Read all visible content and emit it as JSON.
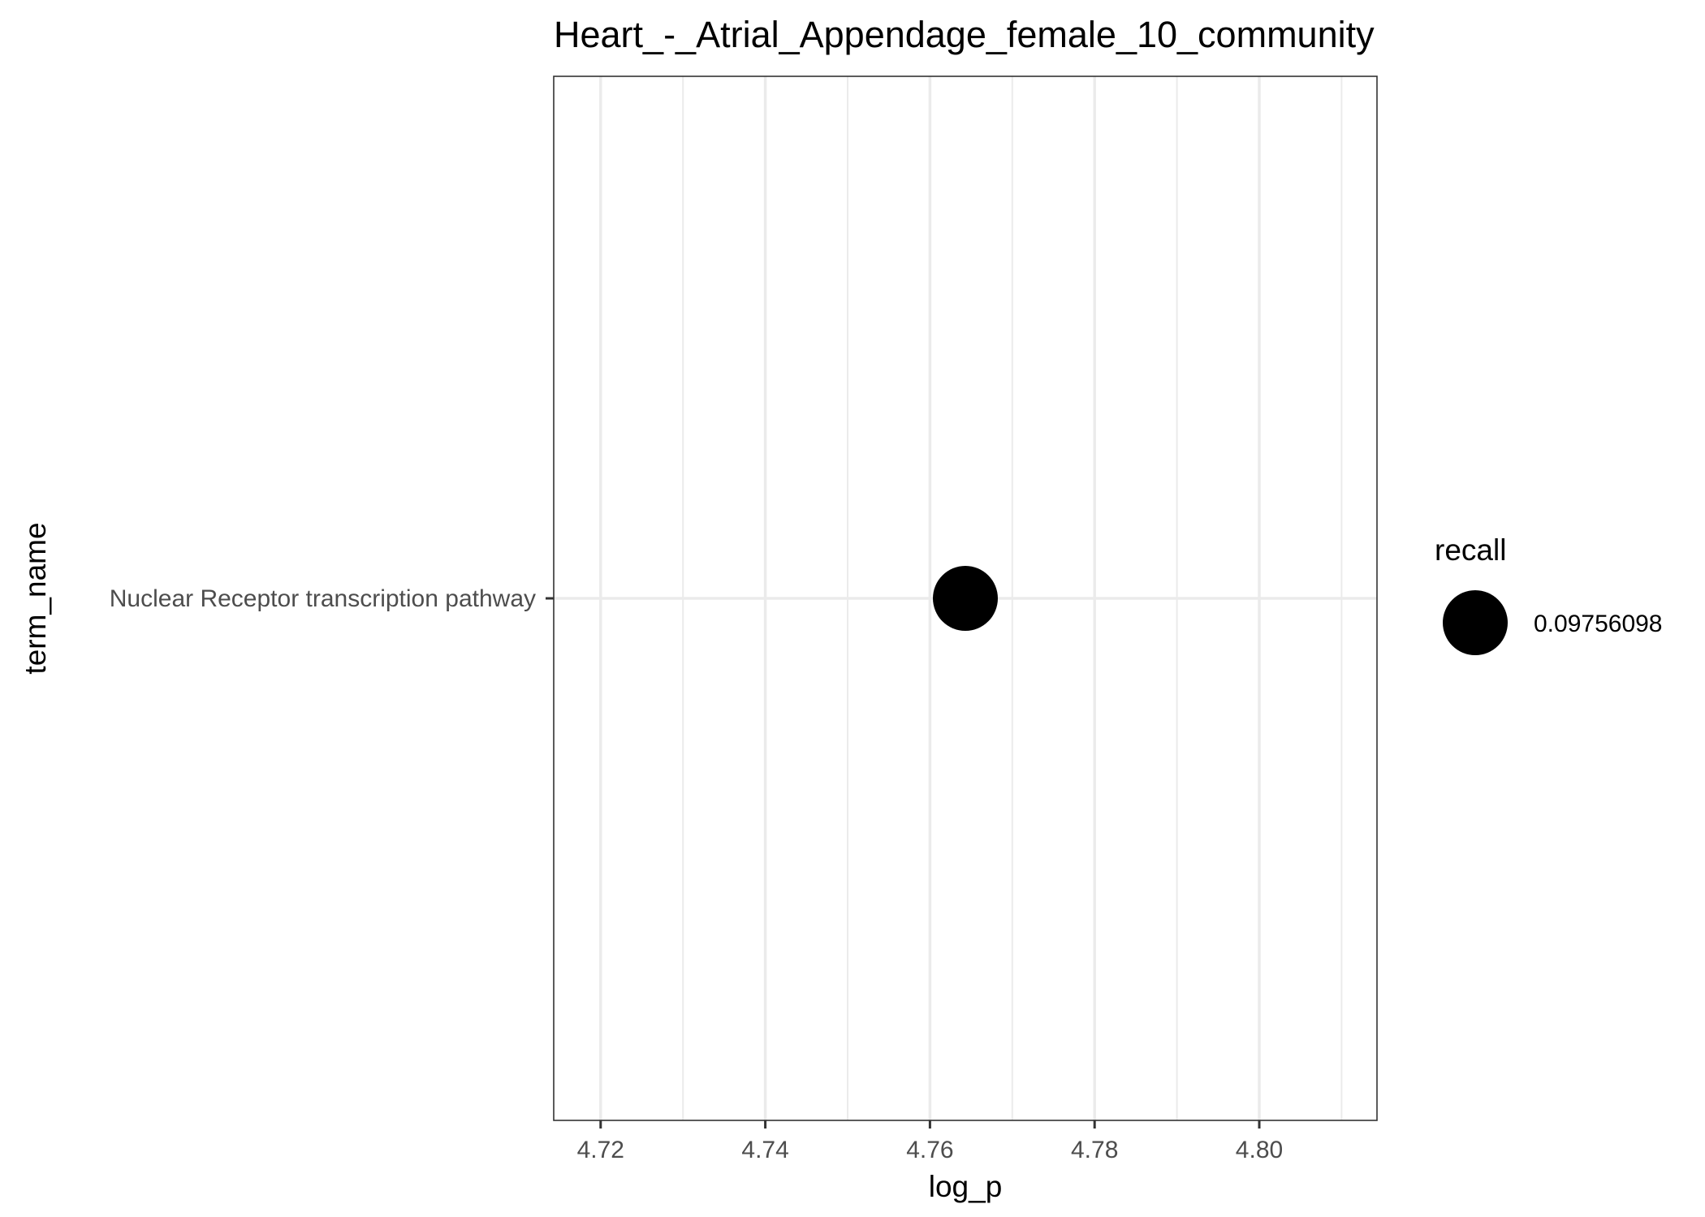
{
  "chart_data": {
    "type": "scatter",
    "title": "Heart_-_Atrial_Appendage_female_10_community",
    "xlabel": "log_p",
    "ylabel": "term_name",
    "xlim": [
      4.7143,
      4.8143
    ],
    "x_ticks": [
      {
        "value": 4.72,
        "label": "4.72"
      },
      {
        "value": 4.74,
        "label": "4.74"
      },
      {
        "value": 4.76,
        "label": "4.76"
      },
      {
        "value": 4.78,
        "label": "4.78"
      },
      {
        "value": 4.8,
        "label": "4.80"
      }
    ],
    "x_minor_ticks": [
      4.73,
      4.75,
      4.77,
      4.79,
      4.81
    ],
    "categories": [
      "Nuclear Receptor transcription pathway"
    ],
    "points": [
      {
        "category": "Nuclear Receptor transcription pathway",
        "x": 4.7643,
        "recall": 0.09756098
      }
    ],
    "grid": true,
    "legend": {
      "title": "recall",
      "placement": "right",
      "entries": [
        {
          "label": "0.09756098",
          "value": 0.09756098
        }
      ]
    },
    "point_color": "#000000",
    "grid_color": "#ebebeb",
    "panel_border_color": "#333333"
  }
}
